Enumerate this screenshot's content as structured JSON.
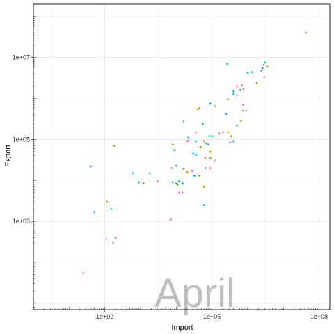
{
  "chart_data": {
    "type": "scatter",
    "title": "",
    "xlabel": "Import",
    "ylabel": "Export",
    "xscale": "log10",
    "yscale": "log10",
    "xlim": [
      1,
      200000000
    ],
    "ylim": [
      7,
      200000000
    ],
    "xticks": [
      100,
      100000,
      100000000
    ],
    "xtick_labels": [
      "1e+02",
      "1e+05",
      "1e+08"
    ],
    "yticks": [
      1000,
      100000,
      10000000
    ],
    "ytick_labels": [
      "1e+03",
      "1e+05",
      "1e+07"
    ],
    "grid": true,
    "theme": "bw",
    "legend": "none",
    "annotation": "April",
    "points": [
      {
        "x": 43000000,
        "y": 40000000,
        "color": "#D89000"
      },
      {
        "x": 3000000,
        "y": 7500000,
        "color": "#00BFC4"
      },
      {
        "x": 3500000,
        "y": 6000000,
        "color": "#7CAE00"
      },
      {
        "x": 2600000,
        "y": 5500000,
        "color": "#00A9FF"
      },
      {
        "x": 2400000,
        "y": 4800000,
        "color": "#FF61C3"
      },
      {
        "x": 2800000,
        "y": 6500000,
        "color": "#F8766D"
      },
      {
        "x": 270000,
        "y": 7000000,
        "color": "#00BF7D"
      },
      {
        "x": 1000000,
        "y": 4200000,
        "color": "#00BFC4"
      },
      {
        "x": 1300000,
        "y": 4400000,
        "color": "#00B0F6"
      },
      {
        "x": 2900000,
        "y": 3300000,
        "color": "#E76BF3"
      },
      {
        "x": 1800000,
        "y": 2400000,
        "color": "#7CAE00"
      },
      {
        "x": 500000,
        "y": 2000000,
        "color": "#FF62BC"
      },
      {
        "x": 680000,
        "y": 2100000,
        "color": "#F8766D"
      },
      {
        "x": 400000,
        "y": 1500000,
        "color": "#00A9FF"
      },
      {
        "x": 400000,
        "y": 1300000,
        "color": "#00BFC4"
      },
      {
        "x": 620000,
        "y": 1600000,
        "color": "#00BA38"
      },
      {
        "x": 750000,
        "y": 1700000,
        "color": "#FF6C91"
      },
      {
        "x": 500000,
        "y": 1200000,
        "color": "#C77CFF"
      },
      {
        "x": 280000,
        "y": 950000,
        "color": "#D39200"
      },
      {
        "x": 90000,
        "y": 750000,
        "color": "#00A9FF"
      },
      {
        "x": 45000,
        "y": 580000,
        "color": "#D89000"
      },
      {
        "x": 40000,
        "y": 550000,
        "color": "#A3A500"
      },
      {
        "x": 120000,
        "y": 650000,
        "color": "#7CAE00"
      },
      {
        "x": 750000,
        "y": 500000,
        "color": "#7CAE00"
      },
      {
        "x": 900000,
        "y": 500000,
        "color": "#FF61C3"
      },
      {
        "x": 250000,
        "y": 420000,
        "color": "#00B0F6"
      },
      {
        "x": 750000,
        "y": 700000,
        "color": "#E76BF3"
      },
      {
        "x": 650000,
        "y": 280000,
        "color": "#D89000"
      },
      {
        "x": 500000,
        "y": 220000,
        "color": "#00BFC4"
      },
      {
        "x": 16000,
        "y": 270000,
        "color": "#00A9FF"
      },
      {
        "x": 55000,
        "y": 240000,
        "color": "#00BFC4"
      },
      {
        "x": 200000,
        "y": 150000,
        "color": "#FF6C91"
      },
      {
        "x": 280000,
        "y": 150000,
        "color": "#D39200"
      },
      {
        "x": 100000,
        "y": 120000,
        "color": "#00BA38"
      },
      {
        "x": 85000,
        "y": 120000,
        "color": "#00A9FF"
      },
      {
        "x": 160000,
        "y": 140000,
        "color": "#C77CFF"
      },
      {
        "x": 350000,
        "y": 120000,
        "color": "#7CAE00"
      },
      {
        "x": 22000,
        "y": 110000,
        "color": "#00A9FF"
      },
      {
        "x": 35000,
        "y": 150000,
        "color": "#FF61C3"
      },
      {
        "x": 400000,
        "y": 90000,
        "color": "#00BFC4"
      },
      {
        "x": 320000,
        "y": 85000,
        "color": "#E76BF3"
      },
      {
        "x": 22000,
        "y": 95000,
        "color": "#E76BF3"
      },
      {
        "x": 20000,
        "y": 90000,
        "color": "#F8766D"
      },
      {
        "x": 180,
        "y": 70000,
        "color": "#A3A500"
      },
      {
        "x": 70000,
        "y": 80000,
        "color": "#00BA38"
      },
      {
        "x": 8000,
        "y": 75000,
        "color": "#D39200"
      },
      {
        "x": 9000,
        "y": 55000,
        "color": "#00A9FF"
      },
      {
        "x": 80000,
        "y": 75000,
        "color": "#00BFC4"
      },
      {
        "x": 60000,
        "y": 90000,
        "color": "#FF6C91"
      },
      {
        "x": 35000,
        "y": 90000,
        "color": "#00B0F6"
      },
      {
        "x": 30000,
        "y": 45000,
        "color": "#00A9FF"
      },
      {
        "x": 36000,
        "y": 42000,
        "color": "#00BFC4"
      },
      {
        "x": 48000,
        "y": 65000,
        "color": "#7CAE00"
      },
      {
        "x": 90000,
        "y": 50000,
        "color": "#D89000"
      },
      {
        "x": 65000,
        "y": 36000,
        "color": "#F8766D"
      },
      {
        "x": 90000,
        "y": 35000,
        "color": "#A3A500"
      },
      {
        "x": 120000,
        "y": 30000,
        "color": "#C77CFF"
      },
      {
        "x": 90000,
        "y": 20000,
        "color": "#F8766D"
      },
      {
        "x": 66000,
        "y": 20000,
        "color": "#D89000"
      },
      {
        "x": 40,
        "y": 22000,
        "color": "#00A9FF"
      },
      {
        "x": 10000,
        "y": 23000,
        "color": "#00B0F6"
      },
      {
        "x": 16000,
        "y": 19000,
        "color": "#F8766D"
      },
      {
        "x": 20000,
        "y": 16000,
        "color": "#D39200"
      },
      {
        "x": 28000,
        "y": 17000,
        "color": "#FF61C3"
      },
      {
        "x": 32000,
        "y": 13000,
        "color": "#00BFC4"
      },
      {
        "x": 45000,
        "y": 13000,
        "color": "#7CAE00"
      },
      {
        "x": 600,
        "y": 15000,
        "color": "#00BFC4"
      },
      {
        "x": 1800,
        "y": 15000,
        "color": "#00A9FF"
      },
      {
        "x": 7500,
        "y": 20000,
        "color": "#C77CFF"
      },
      {
        "x": 3000,
        "y": 9500,
        "color": "#E76BF3"
      },
      {
        "x": 8000,
        "y": 9000,
        "color": "#00A9FF"
      },
      {
        "x": 10000,
        "y": 8500,
        "color": "#D89000"
      },
      {
        "x": 12000,
        "y": 9500,
        "color": "#00BFC4"
      },
      {
        "x": 11000,
        "y": 8000,
        "color": "#00BA38"
      },
      {
        "x": 900,
        "y": 9000,
        "color": "#00A9FF"
      },
      {
        "x": 15000,
        "y": 8500,
        "color": "#00BFC4"
      },
      {
        "x": 60000,
        "y": 7000,
        "color": "#A3A500"
      },
      {
        "x": 1200,
        "y": 8500,
        "color": "#7CAE00"
      },
      {
        "x": 12000,
        "y": 5000,
        "color": "#E76BF3"
      },
      {
        "x": 15000,
        "y": 5000,
        "color": "#FF61C3"
      },
      {
        "x": 115,
        "y": 3000,
        "color": "#D39200"
      },
      {
        "x": 150,
        "y": 2000,
        "color": "#00A9FF"
      },
      {
        "x": 60000,
        "y": 2500,
        "color": "#00A9FF"
      },
      {
        "x": 50,
        "y": 1700,
        "color": "#00BFC4"
      },
      {
        "x": 7000,
        "y": 1100,
        "color": "#FF6C91"
      },
      {
        "x": 110,
        "y": 370,
        "color": "#E76BF3"
      },
      {
        "x": 200,
        "y": 400,
        "color": "#FF61C3"
      },
      {
        "x": 170,
        "y": 300,
        "color": "#C77CFF"
      },
      {
        "x": 25,
        "y": 55,
        "color": "#FF6C91"
      }
    ]
  }
}
